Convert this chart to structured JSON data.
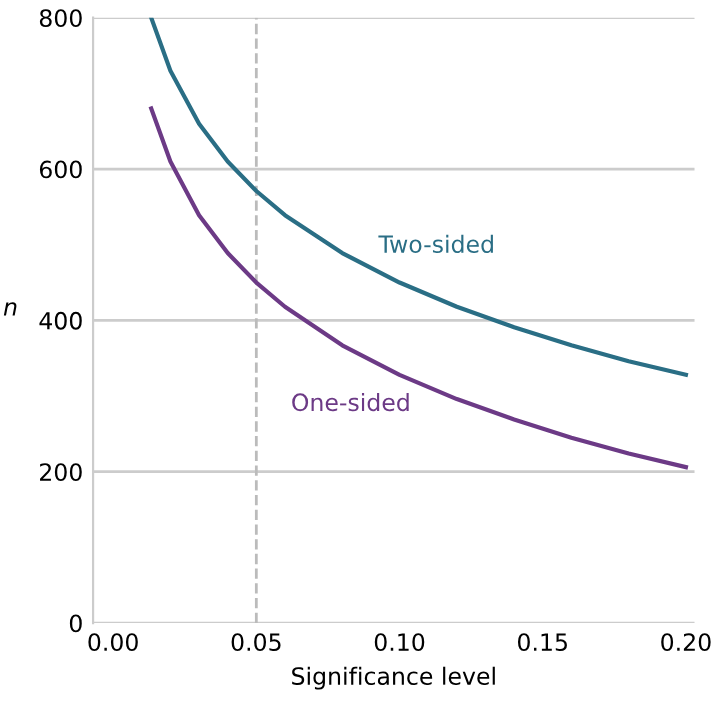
{
  "chart_data": {
    "type": "line",
    "xlabel": "Significance level",
    "ylabel": "n",
    "series": [
      {
        "name": "Two-sided",
        "color": "#2a6e85",
        "x": [
          0.0133,
          0.02,
          0.03,
          0.04,
          0.05,
          0.06,
          0.08,
          0.1,
          0.12,
          0.14,
          0.16,
          0.18,
          0.2
        ],
        "values": [
          800,
          730,
          660,
          610,
          571,
          539,
          489,
          450,
          418,
          391,
          367,
          346,
          328
        ]
      },
      {
        "name": "One-sided",
        "color": "#6c3a86",
        "x": [
          0.0133,
          0.02,
          0.03,
          0.04,
          0.05,
          0.06,
          0.08,
          0.1,
          0.12,
          0.14,
          0.16,
          0.18,
          0.2
        ],
        "values": [
          680,
          610,
          539,
          489,
          450,
          418,
          367,
          328,
          296,
          269,
          245,
          224,
          206
        ]
      }
    ],
    "xlim": [
      -0.007,
      0.203
    ],
    "ylim": [
      0,
      800
    ],
    "xticks": [
      {
        "value": 0,
        "label": "0.00"
      },
      0.05,
      {
        "value": 0.1,
        "label": "0.10"
      },
      0.15,
      {
        "value": 0.2,
        "label": "0.20"
      }
    ],
    "yticks": [
      0,
      200,
      400,
      600,
      800
    ],
    "ref_lines": [
      {
        "axis": "x",
        "value": 0.05,
        "color": "#bbbbbb",
        "line_style": "dashed"
      }
    ],
    "grid": "y",
    "legend": false,
    "marker": "none",
    "line_style": "solid"
  }
}
